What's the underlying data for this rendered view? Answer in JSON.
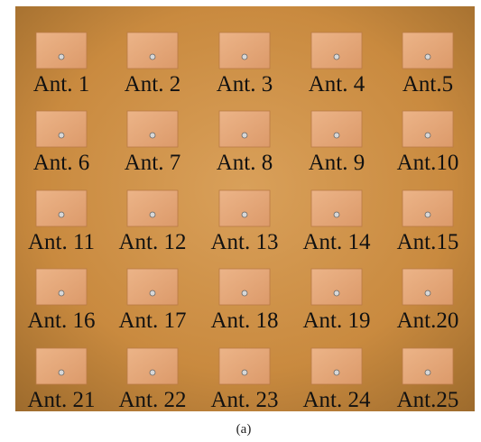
{
  "labels": [
    "Ant. 1",
    "Ant. 2",
    "Ant. 3",
    "Ant. 4",
    "Ant.5",
    "Ant. 6",
    "Ant. 7",
    "Ant. 8",
    "Ant. 9",
    "Ant.10",
    "Ant. 11",
    "Ant. 12",
    "Ant. 13",
    "Ant. 14",
    "Ant.15",
    "Ant. 16",
    "Ant. 17",
    "Ant. 18",
    "Ant. 19",
    "Ant.20",
    "Ant. 21",
    "Ant. 22",
    "Ant. 23",
    "Ant. 24",
    "Ant.25"
  ],
  "caption": "(a)"
}
